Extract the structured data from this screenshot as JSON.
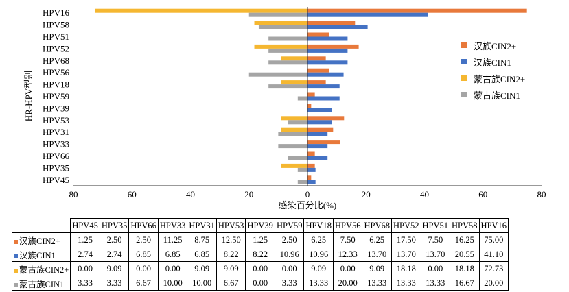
{
  "chart_data": {
    "type": "bar",
    "orientation": "horizontal",
    "ylabel": "HR-HPV型别",
    "xlabel": "感染百分比(%)",
    "xlim": [
      -80,
      80
    ],
    "xticks": [
      80,
      60,
      40,
      20,
      0,
      20,
      40,
      60,
      80
    ],
    "categories": [
      "HPV16",
      "HPV58",
      "HPV51",
      "HPV52",
      "HPV68",
      "HPV56",
      "HPV18",
      "HPV59",
      "HPV39",
      "HPV53",
      "HPV31",
      "HPV33",
      "HPV66",
      "HPV35",
      "HPV45"
    ],
    "series": [
      {
        "name": "汉族CIN2+",
        "color": "#E8793B",
        "side": "right",
        "values": [
          75.0,
          16.25,
          7.5,
          17.5,
          6.25,
          7.5,
          6.25,
          2.5,
          1.25,
          12.5,
          8.75,
          11.25,
          2.5,
          2.5,
          1.25
        ]
      },
      {
        "name": "汉族CIN1",
        "color": "#4472C4",
        "side": "right",
        "values": [
          41.1,
          20.55,
          13.7,
          13.7,
          13.7,
          12.33,
          10.96,
          10.96,
          8.22,
          8.22,
          6.85,
          6.85,
          6.85,
          2.74,
          2.74
        ]
      },
      {
        "name": "蒙古族CIN2+",
        "color": "#F5B731",
        "side": "left",
        "values": [
          72.73,
          18.18,
          0.0,
          18.18,
          9.09,
          0.0,
          9.09,
          0.0,
          0.0,
          9.09,
          9.09,
          0.0,
          0.0,
          9.09,
          0.0
        ]
      },
      {
        "name": "蒙古族CIN1",
        "color": "#A5A5A5",
        "side": "left",
        "values": [
          20.0,
          16.67,
          13.33,
          13.33,
          13.33,
          20.0,
          13.33,
          3.33,
          0.0,
          6.67,
          10.0,
          10.0,
          6.67,
          3.33,
          3.33
        ]
      }
    ],
    "legend_position": "right",
    "grid": false
  },
  "table": {
    "headers": [
      "HPV45",
      "HPV35",
      "HPV66",
      "HPV33",
      "HPV31",
      "HPV53",
      "HPV39",
      "HPV59",
      "HPV18",
      "HPV56",
      "HPV68",
      "HPV52",
      "HPV51",
      "HPV58",
      "HPV16"
    ],
    "rows": [
      {
        "label": "汉族CIN2+",
        "color": "#E8793B",
        "values": [
          "1.25",
          "2.50",
          "2.50",
          "11.25",
          "8.75",
          "12.50",
          "1.25",
          "2.50",
          "6.25",
          "7.50",
          "6.25",
          "17.50",
          "7.50",
          "16.25",
          "75.00"
        ]
      },
      {
        "label": "汉族CIN1",
        "color": "#4472C4",
        "values": [
          "2.74",
          "2.74",
          "6.85",
          "6.85",
          "6.85",
          "8.22",
          "8.22",
          "10.96",
          "10.96",
          "12.33",
          "13.70",
          "13.70",
          "13.70",
          "20.55",
          "41.10"
        ]
      },
      {
        "label": "蒙古族CIN2+",
        "color": "#F5B731",
        "values": [
          "0.00",
          "9.09",
          "0.00",
          "0.00",
          "9.09",
          "9.09",
          "0.00",
          "0.00",
          "9.09",
          "0.00",
          "9.09",
          "18.18",
          "0.00",
          "18.18",
          "72.73"
        ]
      },
      {
        "label": "蒙古族CIN1",
        "color": "#A5A5A5",
        "values": [
          "3.33",
          "3.33",
          "6.67",
          "10.00",
          "10.00",
          "6.67",
          "0.00",
          "3.33",
          "13.33",
          "20.00",
          "13.33",
          "13.33",
          "13.33",
          "16.67",
          "20.00"
        ]
      }
    ]
  }
}
